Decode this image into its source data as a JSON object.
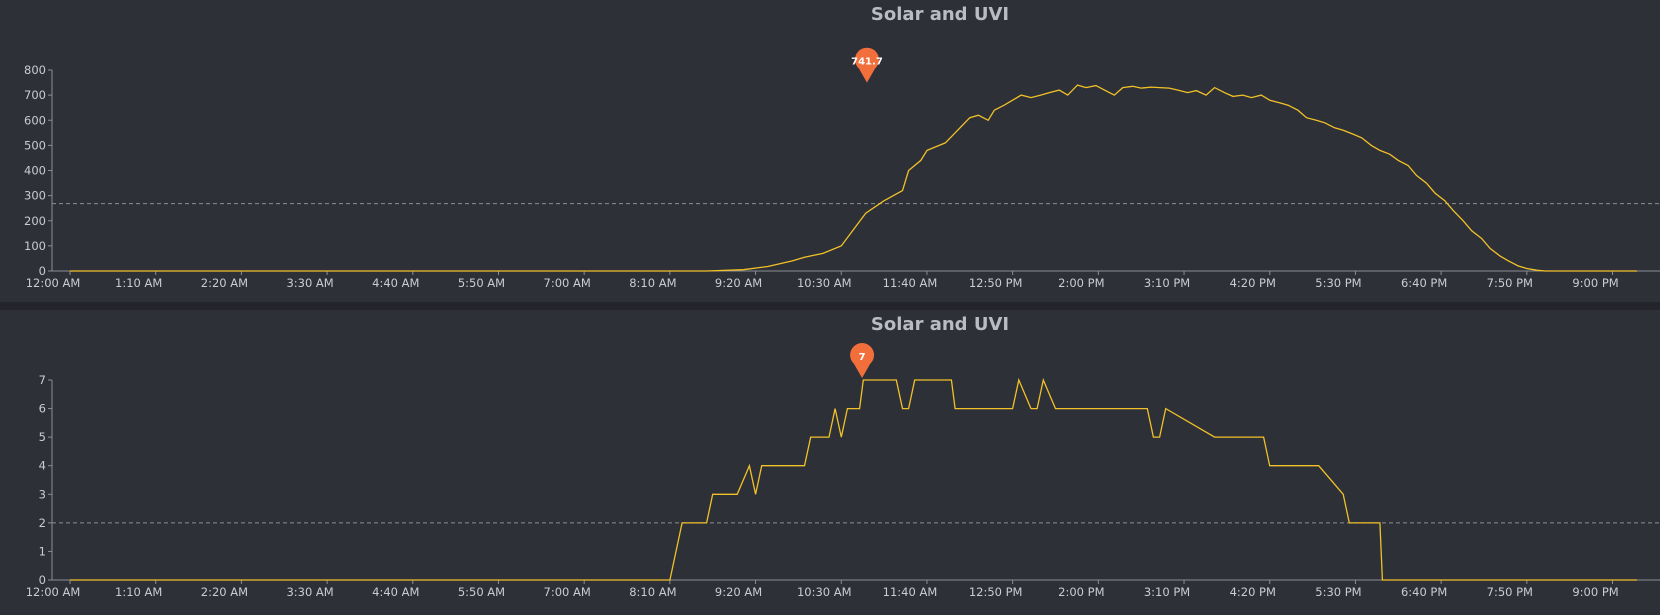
{
  "chart_data": [
    {
      "type": "line",
      "title": "Solar and UVI",
      "xlabel": "",
      "ylabel": "",
      "x_tick_labels": [
        "12:00 AM",
        "1:10 AM",
        "2:20 AM",
        "3:30 AM",
        "4:40 AM",
        "5:50 AM",
        "7:00 AM",
        "8:10 AM",
        "9:20 AM",
        "10:30 AM",
        "11:40 AM",
        "12:50 PM",
        "2:00 PM",
        "3:10 PM",
        "4:20 PM",
        "5:30 PM",
        "6:40 PM",
        "7:50 PM",
        "9:00 PM"
      ],
      "y_ticks": [
        0,
        100,
        200,
        300,
        400,
        500,
        600,
        700,
        800
      ],
      "ylim": [
        0,
        800
      ],
      "xlim_minutes": [
        0,
        1280
      ],
      "reference_line": 268,
      "max_marker": {
        "label": "741.7",
        "value": 741.7,
        "x_minutes": 651
      },
      "series": [
        {
          "color": "#f2c128",
          "x_minutes": [
            0,
            520,
            550,
            570,
            590,
            600,
            615,
            630,
            650,
            665,
            680,
            685,
            695,
            700,
            710,
            715,
            725,
            735,
            742,
            750,
            755,
            763,
            770,
            777,
            785,
            793,
            800,
            808,
            815,
            823,
            830,
            838,
            845,
            853,
            860,
            868,
            875,
            883,
            890,
            898,
            905,
            913,
            920,
            928,
            935,
            943,
            950,
            958,
            965,
            973,
            980,
            988,
            995,
            1003,
            1010,
            1018,
            1025,
            1033,
            1040,
            1048,
            1055,
            1063,
            1070,
            1078,
            1085,
            1093,
            1100,
            1108,
            1115,
            1123,
            1130,
            1138,
            1145,
            1153,
            1160,
            1168,
            1175,
            1183,
            1190,
            1198,
            1205,
            1213,
            1220,
            1228,
            1235,
            1243,
            1250,
            1255,
            1262,
            1270,
            1280
          ],
          "values": [
            0,
            0,
            5,
            18,
            40,
            55,
            70,
            100,
            230,
            280,
            320,
            400,
            440,
            480,
            500,
            510,
            560,
            610,
            620,
            600,
            640,
            660,
            680,
            700,
            690,
            700,
            710,
            720,
            700,
            740,
            730,
            738,
            720,
            700,
            730,
            735,
            728,
            732,
            730,
            728,
            720,
            710,
            718,
            700,
            730,
            710,
            695,
            700,
            690,
            700,
            680,
            670,
            660,
            640,
            610,
            600,
            590,
            570,
            560,
            545,
            530,
            500,
            480,
            465,
            440,
            420,
            380,
            350,
            310,
            280,
            240,
            200,
            160,
            130,
            90,
            60,
            40,
            20,
            10,
            3,
            0,
            0,
            0,
            0,
            0,
            0,
            0,
            0,
            0,
            0,
            0
          ]
        }
      ]
    },
    {
      "type": "line",
      "title": "Solar and UVI",
      "xlabel": "",
      "ylabel": "",
      "x_tick_labels": [
        "12:00 AM",
        "1:10 AM",
        "2:20 AM",
        "3:30 AM",
        "4:40 AM",
        "5:50 AM",
        "7:00 AM",
        "8:10 AM",
        "9:20 AM",
        "10:30 AM",
        "11:40 AM",
        "12:50 PM",
        "2:00 PM",
        "3:10 PM",
        "4:20 PM",
        "5:30 PM",
        "6:40 PM",
        "7:50 PM",
        "9:00 PM"
      ],
      "y_ticks": [
        0,
        1,
        2,
        3,
        4,
        5,
        6,
        7
      ],
      "ylim": [
        0,
        7
      ],
      "xlim_minutes": [
        0,
        1280
      ],
      "reference_line": 2,
      "max_marker": {
        "label": "7",
        "value": 7,
        "x_minutes": 647
      },
      "series": [
        {
          "color": "#f2c128",
          "x_minutes": [
            0,
            490,
            500,
            520,
            525,
            540,
            545,
            555,
            560,
            565,
            570,
            575,
            600,
            605,
            620,
            625,
            630,
            635,
            645,
            648,
            675,
            680,
            685,
            690,
            720,
            723,
            770,
            775,
            785,
            790,
            795,
            805,
            810,
            815,
            825,
            830,
            880,
            885,
            890,
            895,
            935,
            940,
            975,
            980,
            1000,
            1020,
            1040,
            1045,
            1070,
            1072,
            1280
          ],
          "values": [
            0,
            0,
            2,
            2,
            3,
            3,
            3,
            4,
            3,
            4,
            4,
            4,
            4,
            5,
            5,
            6,
            5,
            6,
            6,
            7,
            7,
            6,
            6,
            7,
            7,
            6,
            6,
            7,
            6,
            6,
            7,
            6,
            6,
            6,
            6,
            6,
            6,
            5,
            5,
            6,
            5,
            5,
            5,
            4,
            4,
            4,
            3,
            2,
            2,
            0,
            0
          ]
        }
      ]
    }
  ]
}
